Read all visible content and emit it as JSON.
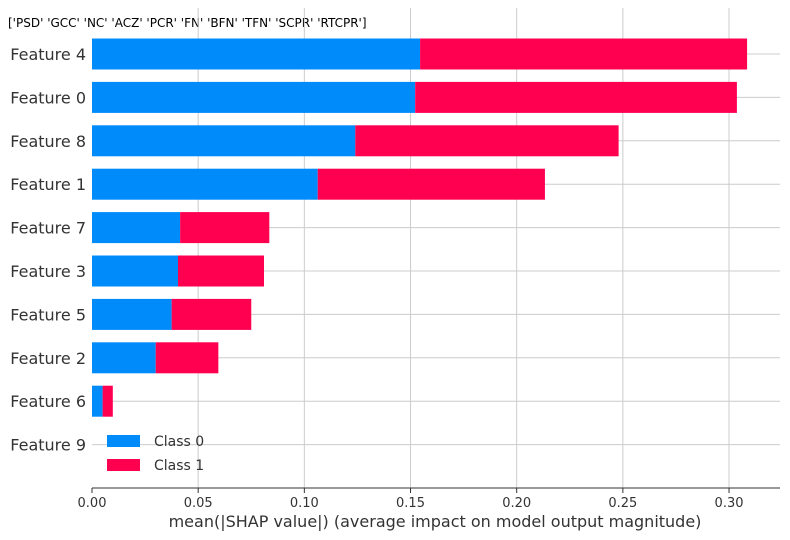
{
  "header_text": "['PSD' 'GCC' 'NC' 'ACZ' 'PCR' 'FN' 'BFN' 'TFN' 'SCPR' 'RTCPR']",
  "chart_data": {
    "type": "bar",
    "orientation": "horizontal",
    "stacked": true,
    "categories": [
      "Feature 4",
      "Feature 0",
      "Feature 8",
      "Feature 1",
      "Feature 7",
      "Feature 3",
      "Feature 5",
      "Feature 2",
      "Feature 6",
      "Feature 9"
    ],
    "series": [
      {
        "name": "Class 0",
        "color": "#008bfb",
        "values": [
          0.1545,
          0.1522,
          0.124,
          0.1063,
          0.0415,
          0.0405,
          0.0375,
          0.03,
          0.005,
          0.0
        ]
      },
      {
        "name": "Class 1",
        "color": "#ff0051",
        "values": [
          0.154,
          0.1515,
          0.124,
          0.107,
          0.042,
          0.0405,
          0.0375,
          0.0295,
          0.0048,
          0.0
        ]
      }
    ],
    "xlabel": "mean(|SHAP value|) (average impact on model output magnitude)",
    "ylabel": "",
    "xlim": [
      0,
      0.324
    ],
    "xticks": [
      0.0,
      0.05,
      0.1,
      0.15,
      0.2,
      0.25,
      0.3
    ],
    "xtick_labels": [
      "0.00",
      "0.05",
      "0.10",
      "0.15",
      "0.20",
      "0.25",
      "0.30"
    ],
    "grid": "vertical",
    "legend": "lower-left"
  }
}
